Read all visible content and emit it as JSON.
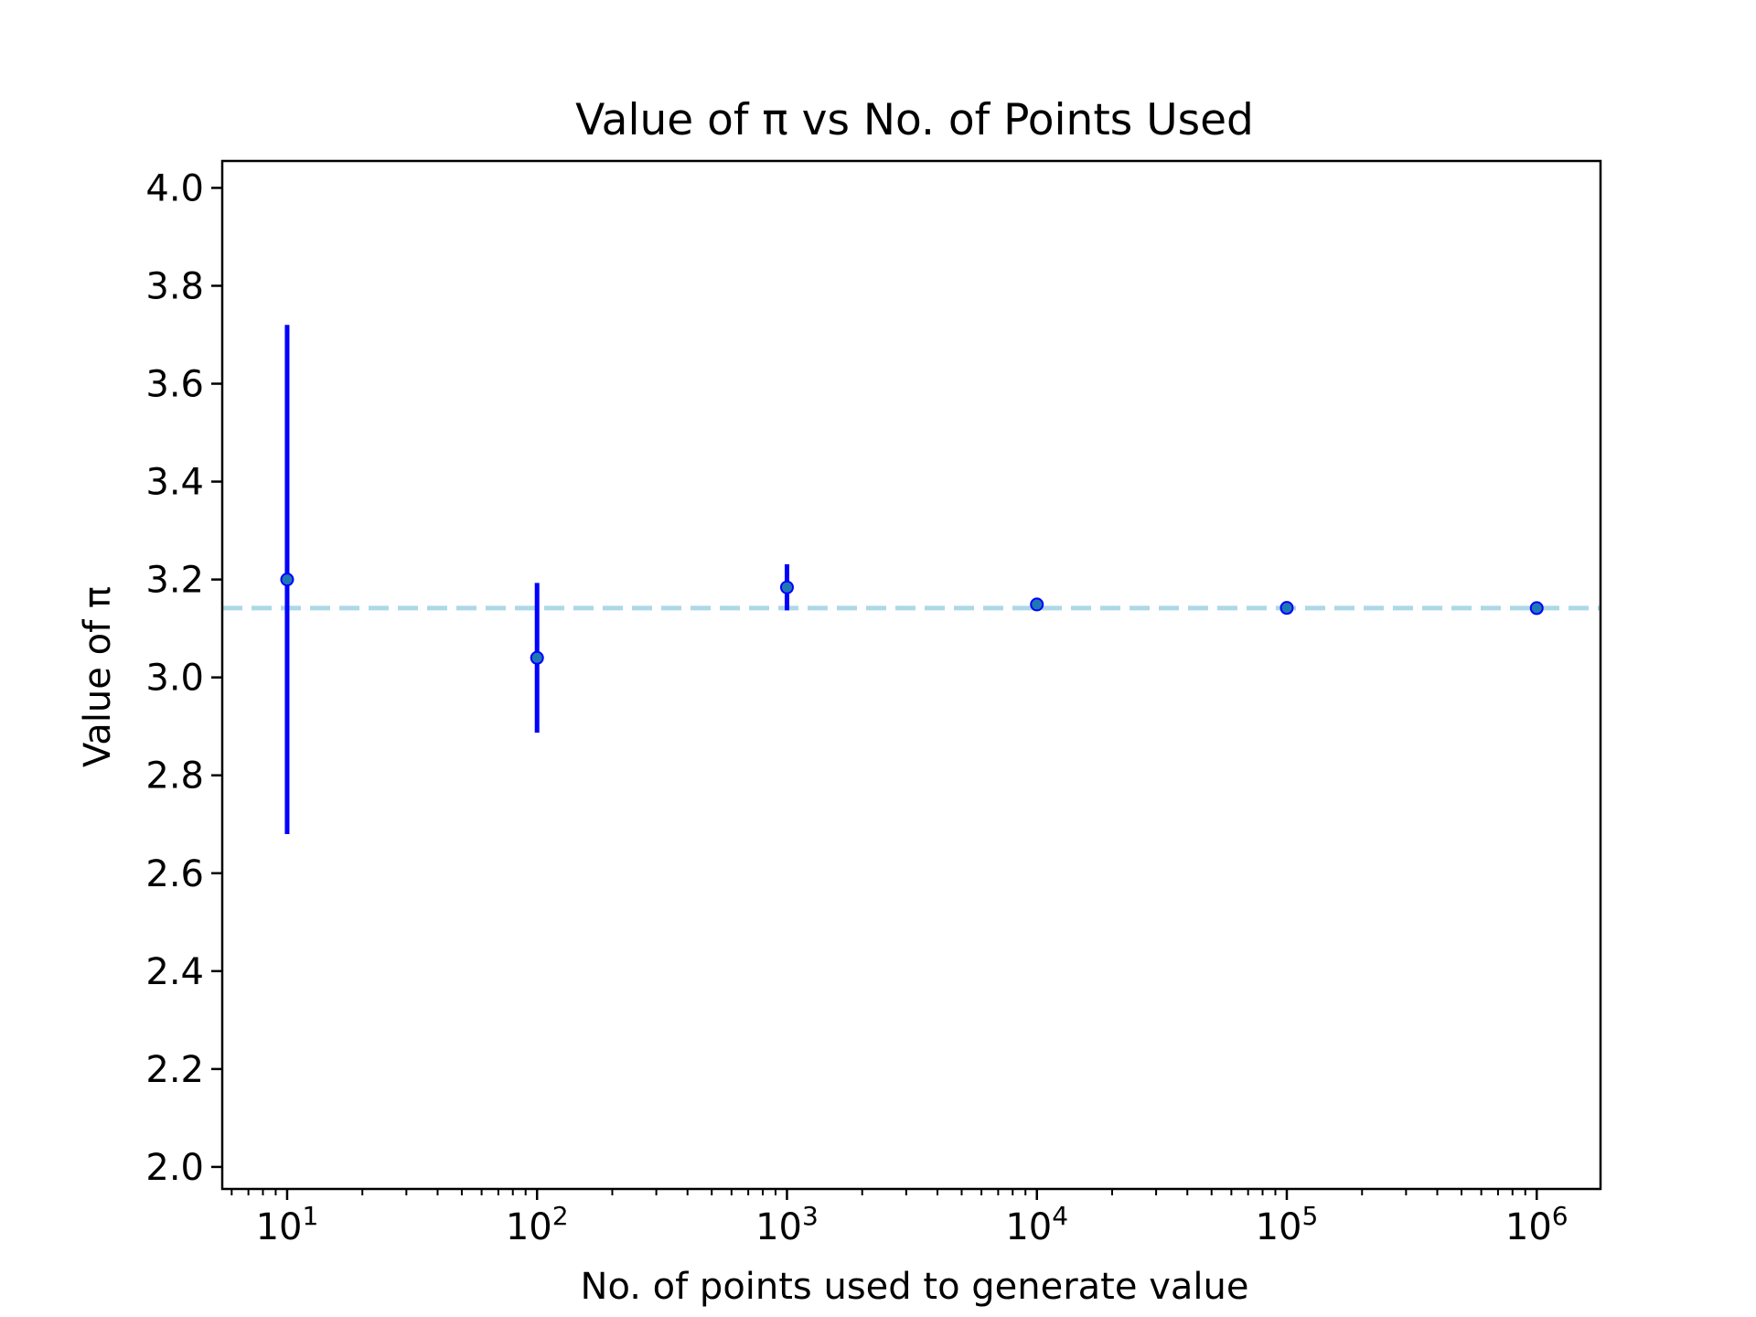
{
  "chart_data": {
    "type": "scatter",
    "title": "Value of π vs No. of Points Used",
    "xlabel": "No. of points used to generate value",
    "ylabel": "Value of π",
    "x_scale": "log",
    "xlim": [
      5.5,
      1800000
    ],
    "ylim": [
      1.955,
      4.055
    ],
    "grid": false,
    "x_ticks": [
      {
        "value": 10,
        "base": "10",
        "exp": "1"
      },
      {
        "value": 100,
        "base": "10",
        "exp": "2"
      },
      {
        "value": 1000,
        "base": "10",
        "exp": "3"
      },
      {
        "value": 10000,
        "base": "10",
        "exp": "4"
      },
      {
        "value": 100000,
        "base": "10",
        "exp": "5"
      },
      {
        "value": 1000000,
        "base": "10",
        "exp": "6"
      }
    ],
    "y_ticks": [
      2.0,
      2.2,
      2.4,
      2.6,
      2.8,
      3.0,
      3.2,
      3.4,
      3.6,
      3.8,
      4.0
    ],
    "series": [
      {
        "x": [
          10,
          100,
          1000,
          10000,
          100000,
          1000000
        ],
        "y": [
          3.2,
          3.04,
          3.184,
          3.149,
          3.142,
          3.1416
        ],
        "yerr": [
          0.52,
          0.153,
          0.047,
          0.005,
          0.0015,
          0.0005
        ],
        "marker_color": "#1f77b4",
        "errorbar_color": "#0000ff"
      }
    ],
    "reference_line": {
      "y": 3.14159,
      "style": "dashed",
      "color": "#add8e6"
    }
  }
}
